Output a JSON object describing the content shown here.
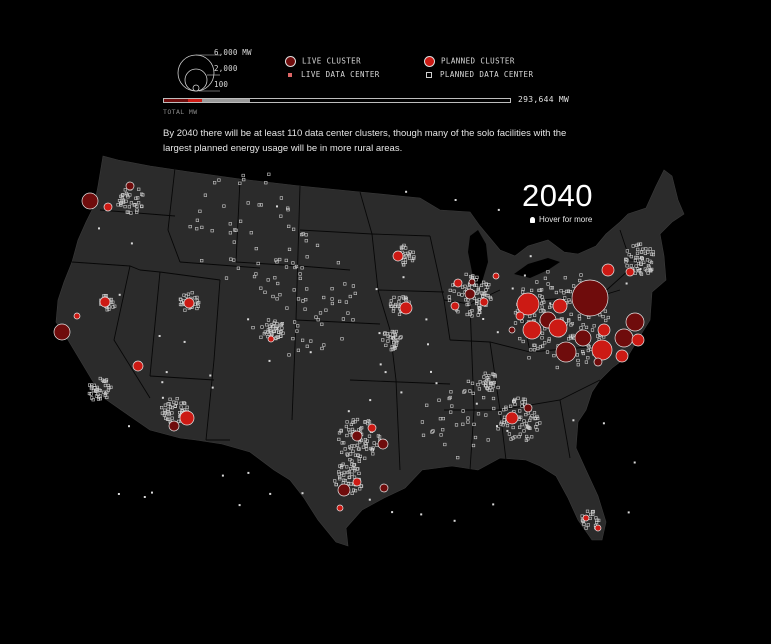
{
  "legend": {
    "size_scale": [
      "6,000 MW",
      "2,000",
      "100"
    ],
    "live_cluster": "LIVE CLUSTER",
    "planned_cluster": "PLANNED CLUSTER",
    "live_data_center": "LIVE DATA CENTER",
    "planned_data_center": "PLANNED DATA CENTER",
    "total_label": "TOTAL MW",
    "total_value": "293,644 MW",
    "total_bar_fractions": {
      "live_cluster": 0.07,
      "planned_cluster": 0.04,
      "live_data_center": 0.14,
      "planned_data_center": 0.75
    }
  },
  "caption": "By 2040 there will be at least 110 data center clusters, though many of the solo facilities with the largest planned energy usage will be in more rural areas.",
  "year": "2040",
  "hover_hint": "Hover for more",
  "colors": {
    "live_cluster": "#6f0c0c",
    "planned_cluster": "#cc1a14",
    "planned_dc_outline": "#cfcfcf",
    "map_fill": "#2b2b2b",
    "state_border": "#050505",
    "background": "#000000"
  },
  "icons": {
    "hover_hint": "lightbulb-icon"
  }
}
